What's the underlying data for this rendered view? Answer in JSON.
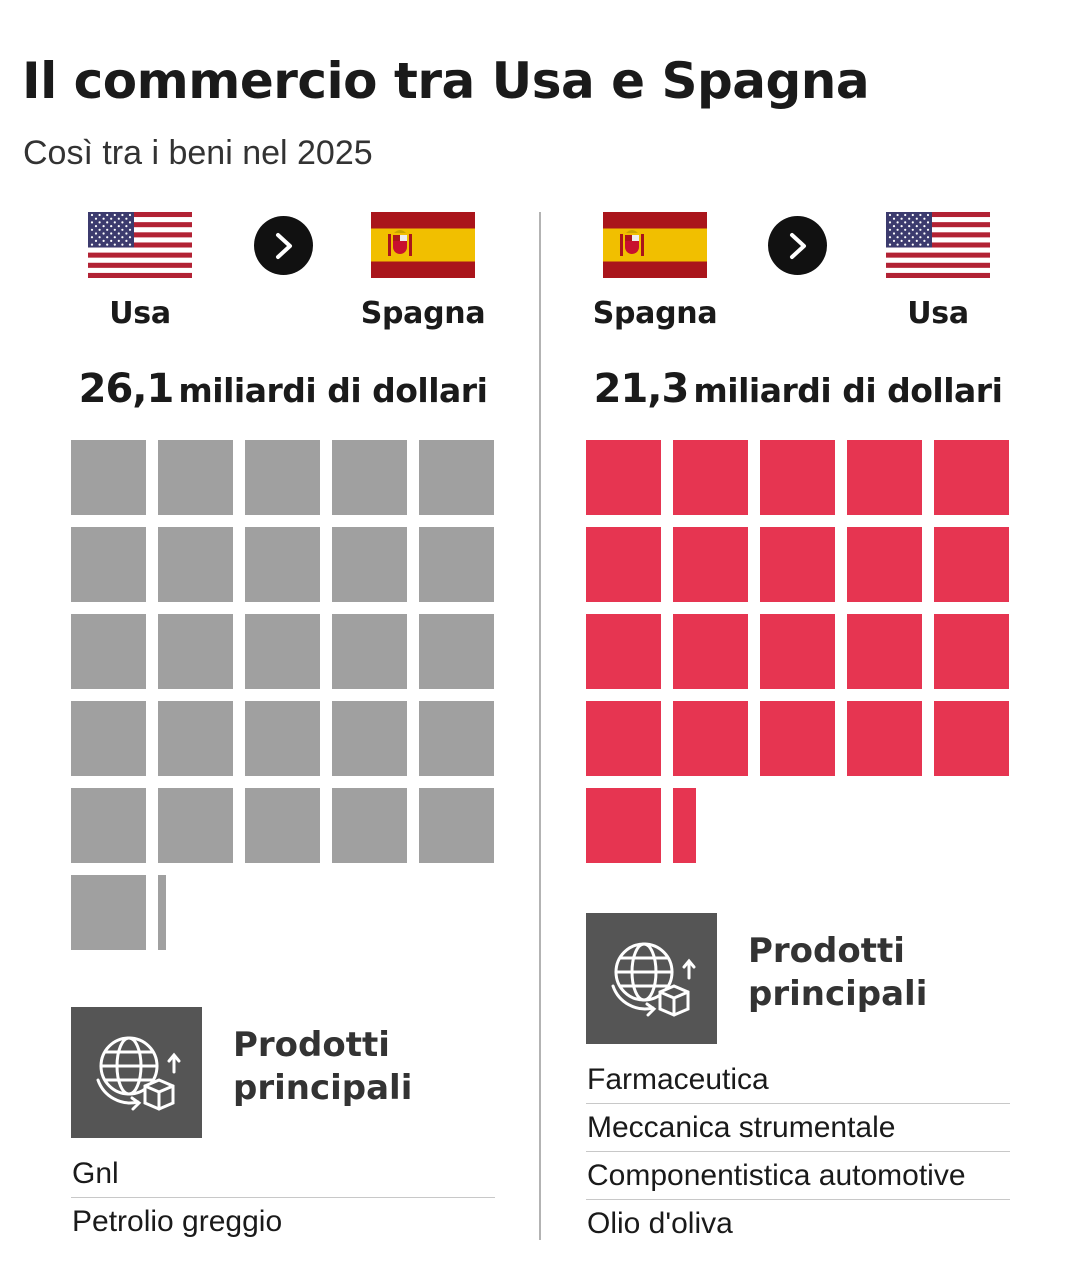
{
  "title": "Il commercio tra Usa e Spagna",
  "subtitle": "Così tra i beni nel 2025",
  "colors": {
    "usa_to_spain": "#a0a0a0",
    "spain_to_usa": "#e63551",
    "product_box": "#555555",
    "divider": "#b3b3b3"
  },
  "flows": [
    {
      "from": "Usa",
      "to": "Spagna",
      "from_flag": "usa-flag",
      "to_flag": "spain-flag",
      "value_label": "26,1",
      "unit_label": "miliardi di dollari",
      "products_title_line1": "Prodotti",
      "products_title_line2": "principali",
      "products": [
        "Gnl",
        "Petrolio greggio"
      ]
    },
    {
      "from": "Spagna",
      "to": "Usa",
      "from_flag": "spain-flag",
      "to_flag": "usa-flag",
      "value_label": "21,3",
      "unit_label": "miliardi di dollari",
      "products_title_line1": "Prodotti",
      "products_title_line2": "principali",
      "products": [
        "Farmaceutica",
        "Meccanica strumentale",
        "Componentistica automotive",
        "Olio d'oliva"
      ]
    }
  ],
  "chart_data": [
    {
      "type": "waffle",
      "series": [
        {
          "name": "Usa",
          "values": [
            26.1
          ]
        }
      ],
      "unit": "miliardi di dollari",
      "grid_columns": 5,
      "unit_per_square": 1,
      "color": "#a0a0a0"
    },
    {
      "type": "waffle",
      "series": [
        {
          "name": "Spagna",
          "values": [
            21.3
          ]
        }
      ],
      "unit": "miliardi di dollari",
      "grid_columns": 5,
      "unit_per_square": 1,
      "color": "#e63551"
    }
  ]
}
